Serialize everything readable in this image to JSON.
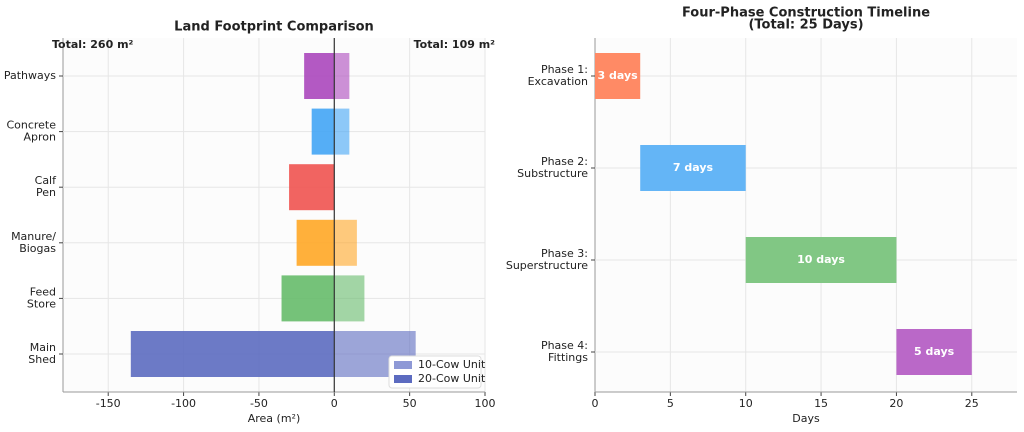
{
  "chart_data": [
    {
      "type": "bar",
      "title": "Land Footprint Comparison",
      "xlabel": "Area (m²)",
      "categories": [
        "Main\nShed",
        "Feed\nStore",
        "Manure/\nBiogas",
        "Calf\nPen",
        "Concrete\nApron",
        "Pathways"
      ],
      "colors": [
        "#5c6bc0",
        "#66bb6a",
        "#ffa726",
        "#ef5350",
        "#42a5f5",
        "#ab47bc"
      ],
      "series": [
        {
          "name": "10-Cow Unit",
          "color": "#8e99d6",
          "values": [
            54,
            20,
            15,
            0,
            10,
            10
          ]
        },
        {
          "name": "20-Cow Unit",
          "color": "#5c6bc0",
          "values": [
            -135,
            -35,
            -25,
            -30,
            -15,
            -20
          ]
        }
      ],
      "annotations": [
        "Total: 260 m²",
        "Total: 109 m²"
      ],
      "xlim": [
        -180,
        100
      ],
      "xticks": [
        -150,
        -100,
        -50,
        0,
        50,
        100
      ],
      "grid": true,
      "legend": "lower right"
    },
    {
      "type": "gantt",
      "title": "Four-Phase Construction Timeline\n(Total: 25 Days)",
      "xlabel": "Days",
      "categories": [
        "Phase 1:\nExcavation",
        "Phase 2:\nSubstructure",
        "Phase 3:\nSuperstructure",
        "Phase 4:\nFittings"
      ],
      "starts": [
        0,
        3,
        10,
        20
      ],
      "durations": [
        3,
        7,
        10,
        5
      ],
      "value_labels": [
        "3 days",
        "7 days",
        "10 days",
        "5 days"
      ],
      "colors": [
        "#ff8a65",
        "#64b5f6",
        "#81c784",
        "#ba68c8"
      ],
      "xlim": [
        0,
        28
      ],
      "xticks": [
        0,
        5,
        10,
        15,
        20,
        25
      ],
      "grid": true
    }
  ]
}
